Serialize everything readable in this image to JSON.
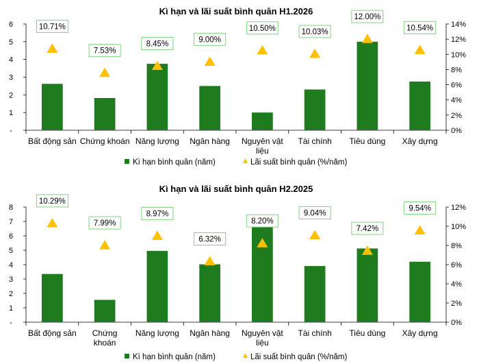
{
  "chart_data": [
    {
      "type": "bar",
      "title": "Kì hạn và lãi suất bình quân H1.2026",
      "categories": [
        "Bất động sản",
        "Chứng khoán",
        "Năng lượng",
        "Ngân hàng",
        "Nguyên vật liệu",
        "Tài chính",
        "Tiêu dùng",
        "Xây dựng"
      ],
      "category_lines": [
        [
          "Bất động sản"
        ],
        [
          "Chứng khoán"
        ],
        [
          "Năng lượng"
        ],
        [
          "Ngân hàng"
        ],
        [
          "Nguyên vật",
          "liệu"
        ],
        [
          "Tài chính"
        ],
        [
          "Tiêu dùng"
        ],
        [
          "Xây dựng"
        ]
      ],
      "series": [
        {
          "name": "Kì hạn bình quân (năm)",
          "type": "bar",
          "axis": "left",
          "color": "#1e7b1e",
          "values": [
            2.62,
            1.82,
            3.75,
            2.5,
            1.0,
            2.3,
            5.0,
            2.75
          ]
        },
        {
          "name": "Lãi suất bình quân (%/năm)",
          "type": "scatter",
          "marker": "triangle",
          "axis": "right",
          "color": "#ffc000",
          "values": [
            10.71,
            7.53,
            8.45,
            9.0,
            10.5,
            10.03,
            12.0,
            10.54
          ],
          "labels": [
            "10.71%",
            "7.53%",
            "8.45%",
            "9.00%",
            "10.50%",
            "10.03%",
            "12.00%",
            "10.54%"
          ]
        }
      ],
      "ylim_left": [
        0,
        6
      ],
      "yticks_left": [
        "-",
        "1",
        "2",
        "3",
        "4",
        "5",
        "6"
      ],
      "ylim_right": [
        0,
        14
      ],
      "yticks_right": [
        "0%",
        "2%",
        "4%",
        "6%",
        "8%",
        "10%",
        "12%",
        "14%"
      ],
      "legend": "bottom"
    },
    {
      "type": "bar",
      "title": "Kì hạn và lãi suất bình quân H2.2025",
      "categories": [
        "Bất động sản",
        "Chứng khoán",
        "Năng lượng",
        "Ngân hàng",
        "Nguyên vật liệu",
        "Tài chính",
        "Tiêu dùng",
        "Xây dựng"
      ],
      "category_lines": [
        [
          "Bất động sản"
        ],
        [
          "Chứng",
          "khoán"
        ],
        [
          "Năng lượng"
        ],
        [
          "Ngân hàng"
        ],
        [
          "Nguyên vật",
          "liệu"
        ],
        [
          "Tài chính"
        ],
        [
          "Tiêu dùng"
        ],
        [
          "Xây dựng"
        ]
      ],
      "series": [
        {
          "name": "Kì hạn bình quân (năm)",
          "type": "bar",
          "axis": "left",
          "color": "#1e7b1e",
          "values": [
            3.35,
            1.55,
            4.95,
            4.02,
            6.65,
            3.9,
            5.12,
            4.2
          ]
        },
        {
          "name": "Lãi suất bình quân (%/năm)",
          "type": "scatter",
          "marker": "triangle",
          "axis": "right",
          "color": "#ffc000",
          "values": [
            10.29,
            7.99,
            8.97,
            6.32,
            8.2,
            9.04,
            7.42,
            9.54
          ],
          "labels": [
            "10.29%",
            "7.99%",
            "8.97%",
            "6.32%",
            "8.20%",
            "9.04%",
            "7.42%",
            "9.54%"
          ]
        }
      ],
      "ylim_left": [
        0,
        8
      ],
      "yticks_left": [
        "-",
        "1",
        "2",
        "3",
        "4",
        "5",
        "6",
        "7",
        "8"
      ],
      "ylim_right": [
        0,
        12
      ],
      "yticks_right": [
        "0%",
        "2%",
        "4%",
        "6%",
        "8%",
        "10%",
        "12%"
      ],
      "legend": "bottom"
    }
  ]
}
